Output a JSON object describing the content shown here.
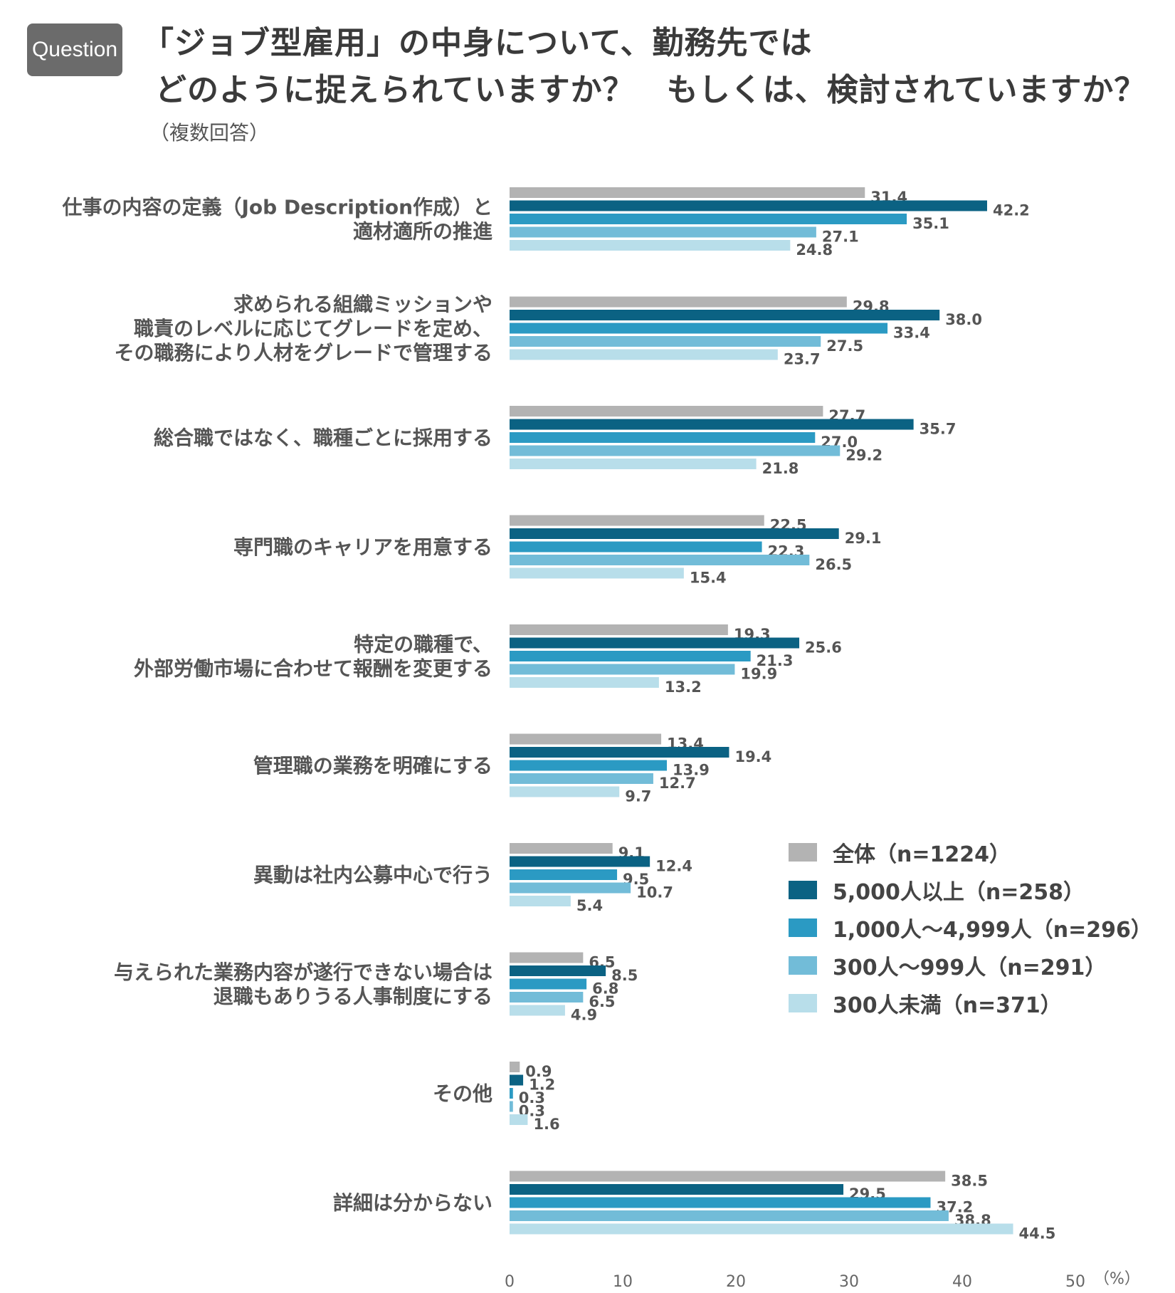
{
  "badge": "Question",
  "title": {
    "line1": "「ジョブ型雇用」の中身について、勤務先では",
    "line2": "どのように捉えられていますか？　もしくは、検討されていますか？"
  },
  "subtitle": "（複数回答）",
  "chart_data": {
    "type": "bar",
    "orientation": "horizontal",
    "title": "「ジョブ型雇用」の中身について、勤務先ではどのように捉えられていますか？　もしくは、検討されていますか？",
    "unit_label": "（%）",
    "xlim": [
      0,
      50
    ],
    "ticks": [
      0,
      10,
      20,
      30,
      40,
      50
    ],
    "legend_position": "right",
    "categories": [
      [
        "仕事の内容の定義（Job Description作成）と",
        "適材適所の推進"
      ],
      [
        "求められる組織ミッションや",
        "職責のレベルに応じてグレードを定め、",
        "その職務により人材をグレードで管理する"
      ],
      [
        "総合職ではなく、職種ごとに採用する"
      ],
      [
        "専門職のキャリアを用意する"
      ],
      [
        "特定の職種で、",
        "外部労働市場に合わせて報酬を変更する"
      ],
      [
        "管理職の業務を明確にする"
      ],
      [
        "異動は社内公募中心で行う"
      ],
      [
        "与えられた業務内容が遂行できない場合は",
        "退職もありうる人事制度にする"
      ],
      [
        "その他"
      ],
      [
        "詳細は分からない"
      ]
    ],
    "series": [
      {
        "name": "全体（n=1224）",
        "color": "#b3b3b3",
        "values": [
          31.4,
          29.8,
          27.7,
          22.5,
          19.3,
          13.4,
          9.1,
          6.5,
          0.9,
          38.5
        ],
        "labels": [
          "31.4",
          "29.8",
          "27.7",
          "22.5",
          "19.3",
          "13.4",
          "9.1",
          "6.5",
          "0.9",
          "38.5"
        ]
      },
      {
        "name": "5,000人以上（n=258）",
        "color": "#0b6283",
        "values": [
          42.2,
          38.0,
          35.7,
          29.1,
          25.6,
          19.4,
          12.4,
          8.5,
          1.2,
          29.5
        ],
        "labels": [
          "42.2",
          "38.0",
          "35.7",
          "29.1",
          "25.6",
          "19.4",
          "12.4",
          "8.5",
          "1.2",
          "29.5"
        ]
      },
      {
        "name": "1,000人〜4,999人（n=296）",
        "color": "#2b9ac3",
        "values": [
          35.1,
          33.4,
          27.0,
          22.3,
          21.3,
          13.9,
          9.5,
          6.8,
          0.3,
          37.2
        ],
        "labels": [
          "35.1",
          "33.4",
          "27.0",
          "22.3",
          "21.3",
          "13.9",
          "9.5",
          "6.8",
          "0.3",
          "37.2"
        ]
      },
      {
        "name": "300人〜999人（n=291）",
        "color": "#72bcd8",
        "values": [
          27.1,
          27.5,
          29.2,
          26.5,
          19.9,
          12.7,
          10.7,
          6.5,
          0.3,
          38.8
        ],
        "labels": [
          "27.1",
          "27.5",
          "29.2",
          "26.5",
          "19.9",
          "12.7",
          "10.7",
          "6.5",
          "0.3",
          "38.8"
        ]
      },
      {
        "name": "300人未満（n=371）",
        "color": "#b8deea",
        "values": [
          24.8,
          23.7,
          21.8,
          15.4,
          13.2,
          9.7,
          5.4,
          4.9,
          1.6,
          44.5
        ],
        "labels": [
          "24.8",
          "23.7",
          "21.8",
          "15.4",
          "13.2",
          "9.7",
          "5.4",
          "4.9",
          "1.6",
          "44.5"
        ]
      }
    ]
  }
}
